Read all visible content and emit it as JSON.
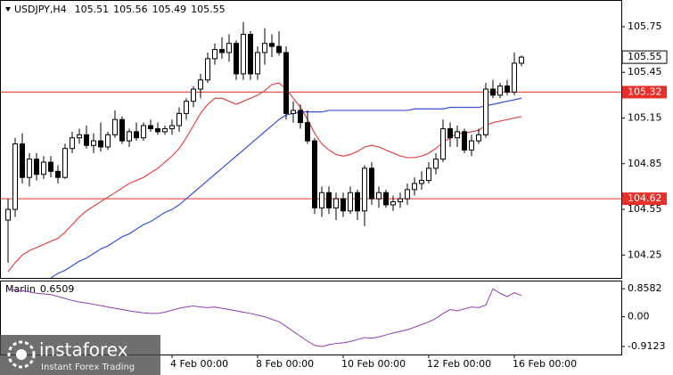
{
  "chart_data": {
    "type": "candlestick",
    "symbol": "USDJPY,H4",
    "categories": [
      null,
      null,
      null,
      null,
      null,
      null,
      null,
      null,
      null,
      null,
      null,
      null,
      null,
      null,
      null,
      null,
      null,
      null,
      null,
      null,
      null,
      null,
      null,
      "4 Feb 00:00",
      null,
      null,
      null,
      null,
      null,
      null,
      null,
      null,
      null,
      null,
      null,
      "8 Feb 00:00",
      null,
      null,
      null,
      null,
      null,
      null,
      null,
      null,
      null,
      null,
      null,
      "10 Feb 00:00",
      null,
      null,
      null,
      null,
      null,
      null,
      null,
      null,
      null,
      null,
      null,
      "12 Feb 00:00",
      null,
      null,
      null,
      null,
      null,
      null,
      null,
      null,
      null,
      null,
      null,
      "16 Feb 00:00",
      null
    ],
    "open": [
      104.48,
      104.55,
      104.98,
      104.76,
      104.88,
      104.78,
      104.86,
      104.8,
      104.76,
      104.95,
      105.02,
      105.04,
      104.97,
      105.0,
      104.96,
      105.04,
      105.14,
      105.0,
      105.06,
      105.02,
      105.1,
      105.08,
      105.06,
      105.08,
      105.1,
      105.18,
      105.26,
      105.34,
      105.4,
      105.54,
      105.6,
      105.58,
      105.64,
      105.44,
      105.7,
      105.44,
      105.58,
      105.64,
      105.62,
      105.58,
      105.18,
      105.2,
      105.12,
      105.0,
      104.56,
      104.66,
      104.56,
      104.62,
      104.54,
      104.66,
      104.54,
      104.82,
      104.62,
      104.66,
      104.58,
      104.6,
      104.62,
      104.68,
      104.72,
      104.74,
      104.82,
      104.88,
      105.08,
      105.02,
      105.06,
      104.94,
      105.0,
      105.04,
      105.34,
      105.3,
      105.36,
      105.32,
      105.51
    ],
    "high": [
      104.62,
      105.02,
      105.05,
      104.92,
      104.92,
      104.9,
      104.9,
      104.84,
      104.98,
      105.06,
      105.08,
      105.1,
      105.05,
      105.12,
      105.06,
      105.2,
      105.16,
      105.08,
      105.12,
      105.12,
      105.14,
      105.12,
      105.1,
      105.14,
      105.22,
      105.28,
      105.36,
      105.44,
      105.58,
      105.64,
      105.68,
      105.7,
      105.66,
      105.78,
      105.72,
      105.62,
      105.74,
      105.7,
      105.72,
      105.62,
      105.26,
      105.24,
      105.2,
      105.02,
      104.7,
      104.7,
      104.66,
      104.66,
      104.7,
      104.68,
      104.84,
      104.86,
      104.7,
      104.68,
      104.64,
      104.66,
      104.72,
      104.76,
      104.8,
      104.86,
      104.92,
      105.14,
      105.12,
      105.1,
      105.08,
      105.04,
      105.08,
      105.38,
      105.4,
      105.38,
      105.4,
      105.58,
      105.56
    ],
    "low": [
      104.2,
      104.5,
      104.72,
      104.7,
      104.74,
      104.75,
      104.76,
      104.72,
      104.75,
      104.92,
      104.98,
      104.95,
      104.92,
      104.93,
      104.94,
      105.02,
      104.98,
      104.96,
      105.0,
      105.0,
      105.06,
      105.04,
      105.04,
      105.04,
      105.06,
      105.14,
      105.22,
      105.28,
      105.38,
      105.5,
      105.54,
      105.52,
      105.4,
      105.4,
      105.4,
      105.4,
      105.5,
      105.55,
      105.56,
      105.14,
      105.12,
      105.08,
      104.98,
      104.52,
      104.5,
      104.52,
      104.48,
      104.5,
      104.52,
      104.48,
      104.44,
      104.58,
      104.56,
      104.56,
      104.54,
      104.56,
      104.58,
      104.64,
      104.68,
      104.72,
      104.78,
      104.86,
      104.96,
      104.96,
      104.92,
      104.9,
      104.98,
      105.02,
      105.28,
      105.28,
      105.3,
      105.3,
      105.49
    ],
    "close": [
      104.55,
      104.98,
      104.76,
      104.88,
      104.78,
      104.86,
      104.8,
      104.76,
      104.95,
      105.02,
      105.04,
      104.97,
      105.0,
      104.96,
      105.04,
      105.14,
      105.0,
      105.06,
      105.02,
      105.1,
      105.08,
      105.06,
      105.08,
      105.1,
      105.18,
      105.26,
      105.34,
      105.4,
      105.54,
      105.6,
      105.58,
      105.64,
      105.44,
      105.7,
      105.44,
      105.58,
      105.64,
      105.62,
      105.58,
      105.18,
      105.2,
      105.12,
      105.0,
      104.56,
      104.66,
      104.56,
      104.62,
      104.54,
      104.66,
      104.54,
      104.82,
      104.62,
      104.66,
      104.58,
      104.6,
      104.62,
      104.68,
      104.72,
      104.74,
      104.82,
      104.88,
      105.08,
      105.02,
      105.06,
      104.94,
      105.0,
      105.04,
      105.34,
      105.3,
      105.36,
      105.32,
      105.51,
      105.55
    ],
    "up_color": "#ffffff",
    "down_color": "#000000",
    "ylim": [
      104.1,
      105.925
    ],
    "yticks": [
      105.75,
      105.45,
      105.15,
      104.85,
      104.55,
      104.25
    ],
    "hlines": [
      105.32,
      104.62
    ],
    "hline_color": "#e8302a",
    "series": [
      {
        "color": "#e0474c",
        "values": [
          104.14,
          104.2,
          104.25,
          104.28,
          104.3,
          104.32,
          104.34,
          104.36,
          104.4,
          104.45,
          104.5,
          104.54,
          104.57,
          104.6,
          104.63,
          104.66,
          104.69,
          104.72,
          104.74,
          104.76,
          104.79,
          104.82,
          104.86,
          104.9,
          104.95,
          105.02,
          105.1,
          105.18,
          105.24,
          105.28,
          105.28,
          105.26,
          105.24,
          105.26,
          105.28,
          105.3,
          105.33,
          105.37,
          105.38,
          105.34,
          105.28,
          105.22,
          105.14,
          105.05,
          104.98,
          104.94,
          104.91,
          104.9,
          104.91,
          104.93,
          104.96,
          104.97,
          104.96,
          104.94,
          104.92,
          104.9,
          104.89,
          104.89,
          104.9,
          104.92,
          104.95,
          104.99,
          105.02,
          105.05,
          105.05,
          105.06,
          105.07,
          105.1,
          105.12,
          105.13,
          105.14,
          105.15,
          105.16
        ]
      },
      {
        "color": "#3a4fd8",
        "values": [
          null,
          null,
          null,
          null,
          null,
          null,
          104.1,
          104.13,
          104.15,
          104.18,
          104.21,
          104.23,
          104.26,
          104.29,
          104.31,
          104.34,
          104.37,
          104.39,
          104.42,
          104.45,
          104.47,
          104.5,
          104.53,
          104.55,
          104.58,
          104.62,
          104.66,
          104.7,
          104.74,
          104.78,
          104.82,
          104.86,
          104.9,
          104.94,
          104.98,
          105.02,
          105.06,
          105.1,
          105.14,
          105.17,
          105.18,
          105.19,
          105.19,
          105.19,
          105.19,
          105.2,
          105.2,
          105.2,
          105.2,
          105.2,
          105.2,
          105.2,
          105.2,
          105.2,
          105.2,
          105.2,
          105.2,
          105.21,
          105.21,
          105.21,
          105.21,
          105.21,
          105.22,
          105.22,
          105.22,
          105.22,
          105.22,
          105.23,
          105.24,
          105.25,
          105.26,
          105.27,
          105.28
        ]
      }
    ],
    "indicator": {
      "type": "line",
      "name": "Marlin",
      "color": "#8a3fb0",
      "values": [
        0.84,
        0.82,
        0.8,
        0.76,
        0.72,
        0.7,
        0.68,
        0.62,
        0.56,
        0.5,
        0.45,
        0.42,
        0.38,
        0.34,
        0.3,
        0.26,
        0.22,
        0.18,
        0.15,
        0.12,
        0.1,
        0.1,
        0.14,
        0.2,
        0.26,
        0.3,
        0.33,
        0.3,
        0.28,
        0.3,
        0.26,
        0.22,
        0.18,
        0.14,
        0.1,
        0.05,
        0,
        -0.08,
        -0.15,
        -0.3,
        -0.45,
        -0.6,
        -0.75,
        -0.88,
        -0.9123,
        -0.86,
        -0.82,
        -0.8,
        -0.76,
        -0.7,
        -0.64,
        -0.66,
        -0.62,
        -0.56,
        -0.5,
        -0.45,
        -0.4,
        -0.32,
        -0.24,
        -0.16,
        -0.05,
        0.1,
        0.22,
        0.18,
        0.24,
        0.3,
        0.28,
        0.36,
        0.8582,
        0.72,
        0.62,
        0.74,
        0.6509
      ],
      "ylim": [
        -1.16,
        1.11
      ],
      "yticks": [
        0.8582,
        {
          "value": 0,
          "label": "0.00"
        },
        -0.9123
      ]
    },
    "watermark": {
      "brand": "instaforex",
      "tagline": "Instant Forex Trading"
    }
  }
}
